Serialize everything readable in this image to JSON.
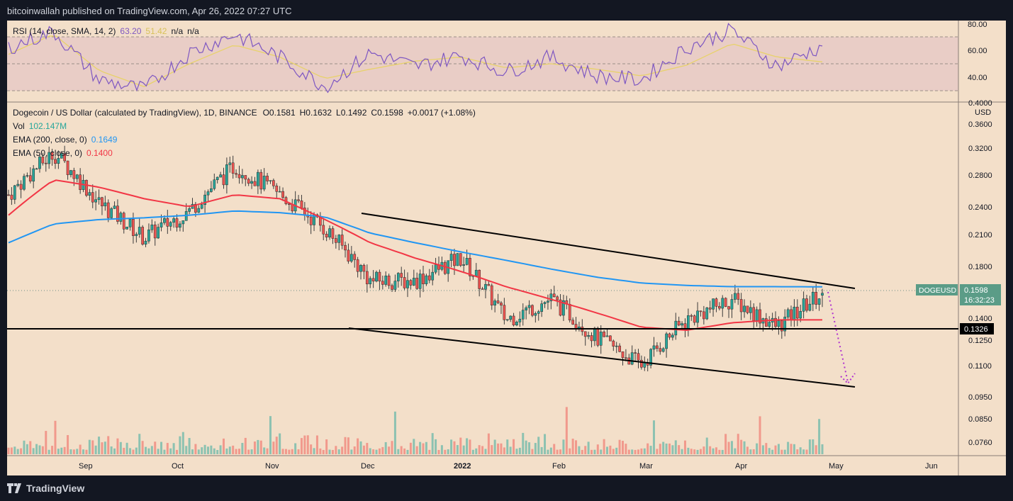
{
  "header": {
    "publisher_text": "bitcoinwallah published on TradingView.com, Apr 26, 2022 07:27 UTC"
  },
  "footer": {
    "brand": "TradingView"
  },
  "rsi": {
    "label": "RSI (14, close, SMA, 14, 2)",
    "value": "63.20",
    "sma_value": "51.42",
    "na1": "n/a",
    "na2": "n/a",
    "axis_ticks": [
      "80.00",
      "60.00",
      "40.00"
    ],
    "levels": [
      70,
      50,
      30
    ],
    "colors": {
      "rsi": "#7e57c2",
      "sma": "#e8d26a",
      "band": "#e9c9c5"
    }
  },
  "main": {
    "legend": {
      "symbol": "Dogecoin / US Dollar (calculated by TradingView), 1D, BINANCE",
      "o": "O0.1581",
      "h": "H0.1632",
      "l": "L0.1492",
      "c": "C0.1598",
      "chg": "+0.0017 (+1.08%)",
      "vol_label": "Vol",
      "vol_value": "102.147M",
      "ema200_label": "EMA (200, close, 0)",
      "ema200_value": "0.1649",
      "ema50_label": "EMA (50, close, 0)",
      "ema50_value": "0.1400"
    },
    "price_axis": {
      "currency": "USD",
      "ticks": [
        "0.4000",
        "0.3600",
        "0.3200",
        "0.2800",
        "0.2400",
        "0.2100",
        "0.1800",
        "0.1400",
        "0.1250",
        "0.1100",
        "0.0950",
        "0.0850",
        "0.0760"
      ]
    },
    "price_tag": {
      "symbol": "DOGEUSD",
      "price": "0.1598",
      "countdown": "16:32:23"
    },
    "support_tag": {
      "value": "0.1326"
    },
    "time_axis": [
      "Sep",
      "Oct",
      "Nov",
      "Dec",
      "2022",
      "Feb",
      "Mar",
      "Apr",
      "May",
      "Jun"
    ],
    "colors": {
      "up": "#26a69a",
      "down": "#ef5350",
      "ema200": "#2196f3",
      "ema50": "#f23645",
      "arrow": "#b032d0",
      "line": "#000000"
    }
  },
  "chart_data": {
    "type": "candlestick",
    "symbol": "DOGEUSD",
    "interval": "1D",
    "ohlc_last": {
      "open": 0.1581,
      "high": 0.1632,
      "low": 0.1492,
      "close": 0.1598,
      "change": 0.0017,
      "change_pct": 1.08
    },
    "support_level": 0.1326,
    "ema200_last": 0.1649,
    "ema50_last": 0.14,
    "volume_last": "102.147M",
    "rsi_last": 63.2,
    "rsi_sma_last": 51.42,
    "y_scale": "log",
    "ylim": [
      0.072,
      0.41
    ],
    "x": [
      "2021-08-10",
      "2021-08-31",
      "2021-09-15",
      "2021-09-30",
      "2021-10-15",
      "2021-10-31",
      "2021-11-15",
      "2021-11-30",
      "2021-12-15",
      "2021-12-31",
      "2022-01-15",
      "2022-01-31",
      "2022-02-15",
      "2022-02-28",
      "2022-03-15",
      "2022-03-31",
      "2022-04-10",
      "2022-04-20",
      "2022-04-26"
    ],
    "close_approx": [
      0.26,
      0.32,
      0.25,
      0.21,
      0.24,
      0.3,
      0.26,
      0.22,
      0.17,
      0.17,
      0.19,
      0.14,
      0.155,
      0.128,
      0.112,
      0.14,
      0.155,
      0.135,
      0.1598
    ],
    "ema200_approx": [
      0.205,
      0.225,
      0.23,
      0.232,
      0.235,
      0.24,
      0.238,
      0.233,
      0.215,
      0.205,
      0.196,
      0.188,
      0.18,
      0.173,
      0.168,
      0.166,
      0.165,
      0.165,
      0.1649
    ],
    "ema50_approx": [
      0.235,
      0.28,
      0.27,
      0.255,
      0.245,
      0.26,
      0.255,
      0.23,
      0.205,
      0.19,
      0.178,
      0.165,
      0.155,
      0.145,
      0.135,
      0.133,
      0.138,
      0.14,
      0.14
    ],
    "rsi_approx": [
      62,
      74,
      38,
      31,
      58,
      72,
      55,
      33,
      58,
      48,
      56,
      44,
      55,
      41,
      38,
      62,
      75,
      48,
      63.2
    ],
    "rsi_sma_approx": [
      57,
      72,
      45,
      33,
      50,
      64,
      55,
      39,
      46,
      52,
      55,
      47,
      50,
      46,
      41,
      49,
      65,
      55,
      51.42
    ],
    "channel_upper": [
      [
        "2021-11-30",
        0.232
      ],
      [
        "2022-05-08",
        0.162
      ]
    ],
    "channel_lower": [
      [
        "2021-11-27",
        0.1335
      ],
      [
        "2022-05-08",
        0.1
      ]
    ],
    "projection_arrow": [
      [
        "2022-04-26",
        0.162
      ],
      [
        "2022-05-06",
        0.101
      ]
    ]
  }
}
